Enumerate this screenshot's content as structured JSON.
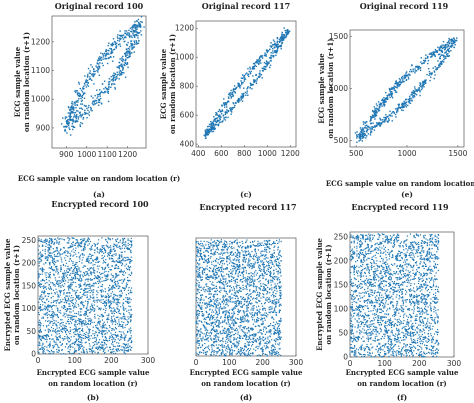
{
  "colors": {
    "point": "#1f77b4",
    "axis": "#555555"
  },
  "chart_data": [
    {
      "id": "a",
      "type": "scatter",
      "title": "Original record 100",
      "xlabel": "ECG sample value on random location (r)",
      "ylabel_lines": [
        "ECG sample value",
        "on random location (r+1)"
      ],
      "panel_label": "(a)",
      "xlim": [
        830,
        1290
      ],
      "ylim": [
        830,
        1290
      ],
      "xticks": [
        900,
        1000,
        1100,
        1200
      ],
      "yticks": [
        900,
        1000,
        1100,
        1200
      ],
      "pattern": "ecg_loop",
      "loop": {
        "start": 895,
        "end": 1265,
        "width": 45,
        "noise": 12
      },
      "n_points": 650
    },
    {
      "id": "c",
      "type": "scatter",
      "title": "Original record 117",
      "xlabel": "",
      "ylabel_lines": [
        "ECG sample value",
        "on random location (r+1)"
      ],
      "panel_label": "(c)",
      "xlim": [
        380,
        1250
      ],
      "ylim": [
        380,
        1250
      ],
      "xticks": [
        400,
        600,
        800,
        1000,
        1200
      ],
      "yticks": [
        400,
        600,
        800,
        1000,
        1200
      ],
      "pattern": "ecg_loop",
      "loop": {
        "start": 460,
        "end": 1190,
        "width": 40,
        "noise": 12
      },
      "n_points": 550
    },
    {
      "id": "e",
      "type": "scatter",
      "title": "Original record 119",
      "xlabel": "ECG sample value on random location (r)",
      "ylabel_lines": [
        "ECG sample value",
        "on random location (r+1)"
      ],
      "panel_label": "(e)",
      "xlim": [
        440,
        1560
      ],
      "ylim": [
        440,
        1560
      ],
      "xticks": [
        500,
        1000,
        1500
      ],
      "yticks": [
        500,
        1000,
        1500
      ],
      "pattern": "ecg_loop",
      "loop": {
        "start": 520,
        "end": 1470,
        "width": 90,
        "noise": 18
      },
      "n_points": 700
    },
    {
      "id": "b",
      "type": "scatter",
      "title": "Encrypted record 100",
      "xlabel_lines": [
        "Encrypted ECG sample value",
        "on random location (r)"
      ],
      "ylabel_lines": [
        "Encrypted ECG sample value",
        "on random location (r+1)"
      ],
      "panel_label": "(b)",
      "xlim": [
        0,
        300
      ],
      "ylim": [
        0,
        260
      ],
      "xticks": [
        0,
        100,
        200,
        300
      ],
      "yticks": [
        0,
        50,
        100,
        150,
        200,
        250
      ],
      "pattern": "uniform",
      "fill_max": 256,
      "n_points": 2400
    },
    {
      "id": "d",
      "type": "scatter",
      "title": "Encrypted record 117",
      "xlabel_lines": [
        "Encrypted ECG sample value",
        "on random location (r)"
      ],
      "ylabel_lines": [],
      "panel_label": "(d)",
      "xlim": [
        0,
        300
      ],
      "ylim": [
        0,
        260
      ],
      "xticks": [
        0,
        100,
        200,
        300
      ],
      "yticks": [],
      "pattern": "uniform",
      "fill_max": 256,
      "n_points": 2400
    },
    {
      "id": "f",
      "type": "scatter",
      "title": "Encrypted record 119",
      "xlabel_lines": [
        "Encrypted ECG sample value",
        "on random location (r)"
      ],
      "ylabel_lines": [
        "Encrypted ECG sample value",
        "on random location (r+1)"
      ],
      "panel_label": "(f)",
      "xlim": [
        0,
        300
      ],
      "ylim": [
        0,
        260
      ],
      "xticks": [
        0,
        100,
        200,
        300
      ],
      "yticks": [
        0,
        50,
        100,
        150,
        200,
        250
      ],
      "pattern": "uniform",
      "fill_max": 256,
      "n_points": 2400
    }
  ]
}
